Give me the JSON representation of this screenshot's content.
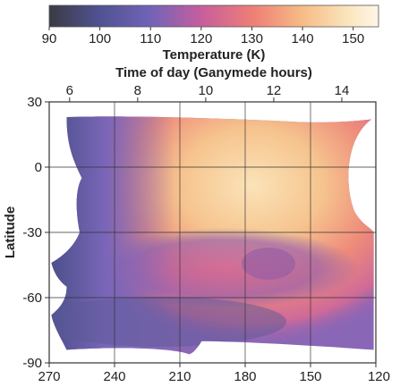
{
  "chart_data": {
    "type": "heatmap",
    "colorbar": {
      "label": "Temperature (K)",
      "range": [
        90,
        155
      ],
      "ticks": [
        "90",
        "100",
        "110",
        "120",
        "130",
        "140",
        "150"
      ],
      "tick_values": [
        90,
        100,
        110,
        120,
        130,
        140,
        150
      ],
      "colormap": [
        {
          "value": 90,
          "color": "#3a3b44"
        },
        {
          "value": 100,
          "color": "#4f5290"
        },
        {
          "value": 110,
          "color": "#7263b8"
        },
        {
          "value": 120,
          "color": "#c65e9e"
        },
        {
          "value": 130,
          "color": "#ee7f76"
        },
        {
          "value": 140,
          "color": "#f6bd86"
        },
        {
          "value": 150,
          "color": "#fbe8c3"
        },
        {
          "value": 155,
          "color": "#fdf6e8"
        }
      ]
    },
    "top_axis": {
      "label": "Time of day (Ganymede hours)",
      "range": [
        5.4,
        15.0
      ],
      "ticks": [
        "6",
        "8",
        "10",
        "12",
        "14"
      ],
      "tick_values": [
        6,
        8,
        10,
        12,
        14
      ]
    },
    "x_axis": {
      "label": "",
      "range": [
        270,
        120
      ],
      "ticks": [
        "270",
        "240",
        "210",
        "180",
        "150",
        "120"
      ],
      "tick_values": [
        270,
        240,
        210,
        180,
        150,
        120
      ]
    },
    "y_axis": {
      "label": "Latitude",
      "range": [
        -90,
        30
      ],
      "ticks": [
        "30",
        "0",
        "-30",
        "-60",
        "-90"
      ],
      "tick_values": [
        30,
        0,
        -30,
        -60,
        -90
      ]
    },
    "grid": true,
    "approx_temperature_samples": [
      {
        "lon": 260,
        "lat": 10,
        "temp": 100
      },
      {
        "lon": 250,
        "lat": -20,
        "temp": 107
      },
      {
        "lon": 240,
        "lat": 0,
        "temp": 120
      },
      {
        "lon": 225,
        "lat": 10,
        "temp": 132
      },
      {
        "lon": 210,
        "lat": 0,
        "temp": 142
      },
      {
        "lon": 180,
        "lat": 10,
        "temp": 147
      },
      {
        "lon": 150,
        "lat": 10,
        "temp": 150
      },
      {
        "lon": 180,
        "lat": -30,
        "temp": 135
      },
      {
        "lon": 175,
        "lat": -45,
        "temp": 118
      },
      {
        "lon": 210,
        "lat": -60,
        "temp": 125
      },
      {
        "lon": 240,
        "lat": -75,
        "temp": 100
      },
      {
        "lon": 150,
        "lat": -60,
        "temp": 130
      }
    ]
  }
}
